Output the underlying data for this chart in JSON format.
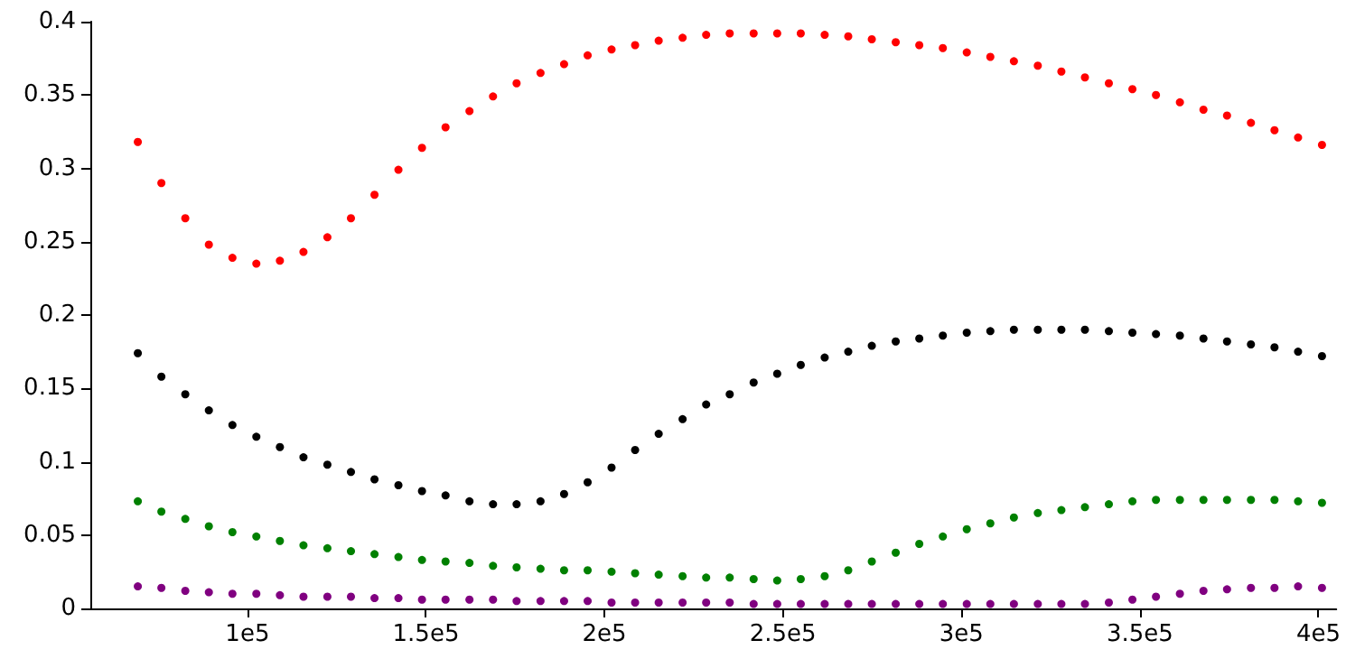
{
  "chart_data": {
    "type": "scatter",
    "marker": "circle",
    "x": [
      69300,
      75900,
      82600,
      89200,
      95800,
      102500,
      109100,
      115700,
      122400,
      129000,
      135600,
      142300,
      148900,
      155500,
      162200,
      168800,
      175400,
      182100,
      188700,
      195300,
      202000,
      208600,
      215200,
      221900,
      228500,
      235100,
      241800,
      248400,
      255000,
      261700,
      268300,
      274900,
      281600,
      288200,
      294800,
      301500,
      308100,
      314700,
      321400,
      328000,
      334600,
      341300,
      347900,
      354500,
      361200,
      367800,
      374400,
      381100,
      387700,
      394300,
      401000
    ],
    "xlim": [
      56000,
      405000
    ],
    "xticks": [
      {
        "value": 100000,
        "label": "1e5"
      },
      {
        "value": 150000,
        "label": "1.5e5"
      },
      {
        "value": 200000,
        "label": "2e5"
      },
      {
        "value": 250000,
        "label": "2.5e5"
      },
      {
        "value": 300000,
        "label": "3e5"
      },
      {
        "value": 350000,
        "label": "3.5e5"
      },
      {
        "value": 400000,
        "label": "4e5"
      }
    ],
    "ylim": [
      0,
      0.4
    ],
    "yticks": [
      0,
      0.05,
      0.1,
      0.15,
      0.2,
      0.25,
      0.3,
      0.35,
      0.4
    ],
    "series": [
      {
        "color": "#ff0000",
        "values": [
          0.318,
          0.29,
          0.266,
          0.248,
          0.239,
          0.235,
          0.237,
          0.243,
          0.253,
          0.266,
          0.282,
          0.299,
          0.314,
          0.328,
          0.339,
          0.349,
          0.358,
          0.365,
          0.371,
          0.377,
          0.381,
          0.384,
          0.387,
          0.389,
          0.391,
          0.392,
          0.392,
          0.392,
          0.392,
          0.391,
          0.39,
          0.388,
          0.386,
          0.384,
          0.382,
          0.379,
          0.376,
          0.373,
          0.37,
          0.366,
          0.362,
          0.358,
          0.354,
          0.35,
          0.345,
          0.34,
          0.336,
          0.331,
          0.326,
          0.321,
          0.316
        ]
      },
      {
        "color": "#000000",
        "values": [
          0.174,
          0.158,
          0.146,
          0.135,
          0.125,
          0.117,
          0.11,
          0.103,
          0.098,
          0.093,
          0.088,
          0.084,
          0.08,
          0.077,
          0.073,
          0.071,
          0.071,
          0.073,
          0.078,
          0.086,
          0.096,
          0.108,
          0.119,
          0.129,
          0.139,
          0.146,
          0.154,
          0.16,
          0.166,
          0.171,
          0.175,
          0.179,
          0.182,
          0.184,
          0.186,
          0.188,
          0.189,
          0.19,
          0.19,
          0.19,
          0.19,
          0.189,
          0.188,
          0.187,
          0.186,
          0.184,
          0.182,
          0.18,
          0.178,
          0.175,
          0.172
        ]
      },
      {
        "color": "#008000",
        "values": [
          0.073,
          0.066,
          0.061,
          0.056,
          0.052,
          0.049,
          0.046,
          0.043,
          0.041,
          0.039,
          0.037,
          0.035,
          0.033,
          0.032,
          0.031,
          0.029,
          0.028,
          0.027,
          0.026,
          0.026,
          0.025,
          0.024,
          0.023,
          0.022,
          0.021,
          0.021,
          0.02,
          0.019,
          0.02,
          0.022,
          0.026,
          0.032,
          0.038,
          0.044,
          0.049,
          0.054,
          0.058,
          0.062,
          0.065,
          0.067,
          0.069,
          0.071,
          0.073,
          0.074,
          0.074,
          0.074,
          0.074,
          0.074,
          0.074,
          0.073,
          0.072
        ]
      },
      {
        "color": "#800080",
        "values": [
          0.015,
          0.014,
          0.012,
          0.011,
          0.01,
          0.01,
          0.009,
          0.008,
          0.008,
          0.008,
          0.007,
          0.007,
          0.006,
          0.006,
          0.006,
          0.006,
          0.005,
          0.005,
          0.005,
          0.005,
          0.004,
          0.004,
          0.004,
          0.004,
          0.004,
          0.004,
          0.003,
          0.003,
          0.003,
          0.003,
          0.003,
          0.003,
          0.003,
          0.003,
          0.003,
          0.003,
          0.003,
          0.003,
          0.003,
          0.003,
          0.003,
          0.004,
          0.006,
          0.008,
          0.01,
          0.012,
          0.013,
          0.014,
          0.014,
          0.015,
          0.014
        ]
      }
    ]
  }
}
